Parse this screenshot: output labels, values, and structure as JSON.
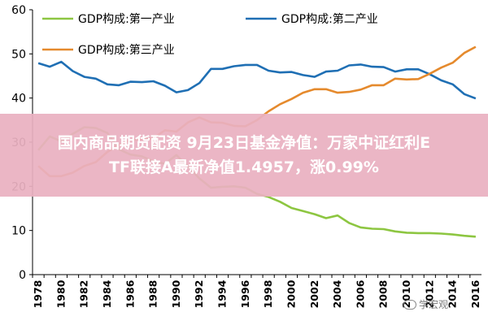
{
  "chart_data": {
    "type": "line",
    "title": "",
    "xlabel": "",
    "ylabel": "",
    "ylim": [
      0,
      60
    ],
    "yticks": [
      0,
      10,
      20,
      30,
      40,
      50,
      60
    ],
    "x": [
      1978,
      1979,
      1980,
      1981,
      1982,
      1983,
      1984,
      1985,
      1986,
      1987,
      1988,
      1989,
      1990,
      1991,
      1992,
      1993,
      1994,
      1995,
      1996,
      1997,
      1998,
      1999,
      2000,
      2001,
      2002,
      2003,
      2004,
      2005,
      2006,
      2007,
      2008,
      2009,
      2010,
      2011,
      2012,
      2013,
      2014,
      2015,
      2016
    ],
    "xtick_labels": [
      "1978",
      "1980",
      "1982",
      "1984",
      "1986",
      "1988",
      "1990",
      "1992",
      "1994",
      "1996",
      "1998",
      "2000",
      "2002",
      "2004",
      "2006",
      "2008",
      "2010",
      "2012",
      "2014",
      "2016"
    ],
    "legend_position": "top",
    "series": [
      {
        "name": "GDP构成:第一产业",
        "color": "#8dc641",
        "values": [
          28.2,
          31.3,
          30.2,
          31.9,
          33.4,
          33.2,
          32.1,
          28.4,
          27.2,
          26.8,
          25.7,
          25.1,
          27.1,
          24.5,
          21.8,
          19.7,
          19.9,
          20.0,
          19.7,
          18.3,
          17.6,
          16.5,
          15.1,
          14.4,
          13.7,
          12.8,
          13.4,
          11.7,
          10.7,
          10.4,
          10.3,
          9.8,
          9.5,
          9.4,
          9.4,
          9.3,
          9.1,
          8.8,
          8.6
        ]
      },
      {
        "name": "GDP构成:第二产业",
        "color": "#1f6fb4",
        "values": [
          47.9,
          47.1,
          48.2,
          46.1,
          44.8,
          44.4,
          43.1,
          42.9,
          43.7,
          43.6,
          43.8,
          42.8,
          41.3,
          41.8,
          43.4,
          46.6,
          46.6,
          47.2,
          47.5,
          47.5,
          46.2,
          45.8,
          45.9,
          45.2,
          44.8,
          46.0,
          46.2,
          47.4,
          47.6,
          47.1,
          47.0,
          46.0,
          46.5,
          46.5,
          45.4,
          44.0,
          43.1,
          40.9,
          39.9
        ]
      },
      {
        "name": "GDP构成:第三产业",
        "color": "#e58a2d",
        "values": [
          24.6,
          22.3,
          22.3,
          23.1,
          24.6,
          25.5,
          27.8,
          29.4,
          30.5,
          30.7,
          30.9,
          32.7,
          32.4,
          34.5,
          35.6,
          34.5,
          34.4,
          33.7,
          33.6,
          35.0,
          37.0,
          38.6,
          39.8,
          41.2,
          42.0,
          42.0,
          41.2,
          41.4,
          41.9,
          42.9,
          42.9,
          44.4,
          44.2,
          44.3,
          45.5,
          46.9,
          48.0,
          50.2,
          51.6
        ]
      }
    ]
  },
  "banner": {
    "line1": "国内商品期货配资 9月23日基金净值：万家中证红利ETF联接A最新净值1.4957，涨0.99%",
    "line1_visible": "国内商品期货配资 9月23日基金净值：万家中证红利E",
    "line2": "TF联接A最新净值1.4957，涨0.99%"
  },
  "watermark": {
    "text": "学宏观"
  }
}
